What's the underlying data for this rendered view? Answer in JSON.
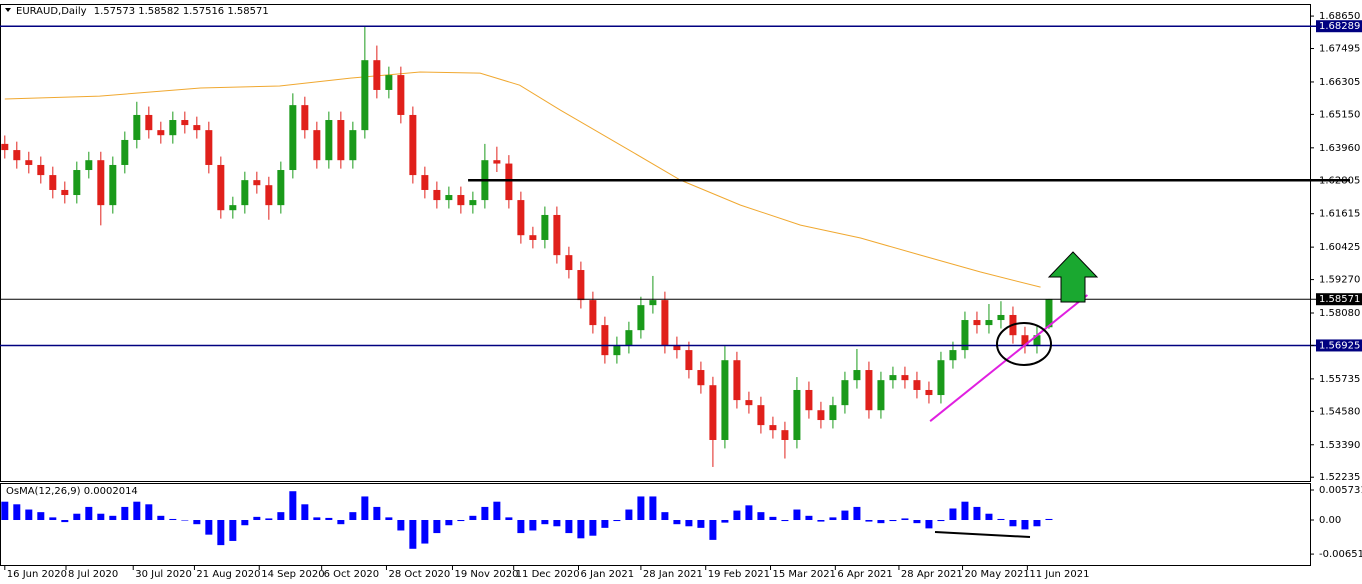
{
  "chart_data": {
    "type": "candlestick",
    "symbol": "EURAUD,Daily",
    "up_color": "#1a9a1a",
    "down_color": "#e0201b",
    "open": [
      1.641,
      1.6388,
      1.6352,
      1.6335,
      1.6299,
      1.6246,
      1.6228,
      1.6317,
      1.6352,
      1.6192,
      1.6335,
      1.6424,
      1.6513,
      1.6459,
      1.6441,
      1.6495,
      1.6477,
      1.6459,
      1.6335,
      1.6174,
      1.6192,
      1.6281,
      1.6263,
      1.6192,
      1.6317,
      1.6548,
      1.6459,
      1.6352,
      1.6495,
      1.6352,
      1.6459,
      1.6708,
      1.6602,
      1.6655,
      1.6513,
      1.6299,
      1.6246,
      1.621,
      1.6228,
      1.6192,
      1.621,
      1.6352,
      1.634,
      1.621,
      1.6085,
      1.6068,
      1.6157,
      1.6014,
      1.5961,
      1.5854,
      1.5765,
      1.5658,
      1.5694,
      1.5747,
      1.5836,
      1.5854,
      1.5694,
      1.5676,
      1.5605,
      1.5551,
      1.5356,
      1.564,
      1.5498,
      1.548,
      1.5409,
      1.5391,
      1.5356,
      1.5534,
      1.5462,
      1.5427,
      1.548,
      1.5569,
      1.5605,
      1.5462,
      1.5569,
      1.5587,
      1.5569,
      1.5534,
      1.5516,
      1.564,
      1.5676,
      1.5783,
      1.5765,
      1.5783,
      1.5801,
      1.5729,
      1.5694,
      1.57573
    ],
    "high": [
      1.644,
      1.6418,
      1.6382,
      1.6365,
      1.6329,
      1.6276,
      1.6347,
      1.6382,
      1.6382,
      1.6365,
      1.6454,
      1.656,
      1.6543,
      1.6489,
      1.6525,
      1.6525,
      1.6507,
      1.6489,
      1.6365,
      1.6222,
      1.6311,
      1.6311,
      1.6293,
      1.6347,
      1.659,
      1.6578,
      1.6489,
      1.6525,
      1.6525,
      1.6489,
      1.6829,
      1.676,
      1.6685,
      1.6685,
      1.6543,
      1.6329,
      1.6276,
      1.6258,
      1.6258,
      1.624,
      1.641,
      1.64,
      1.637,
      1.624,
      1.6115,
      1.6187,
      1.6187,
      1.6044,
      1.5991,
      1.5884,
      1.5795,
      1.5724,
      1.5777,
      1.5866,
      1.594,
      1.5884,
      1.5724,
      1.5706,
      1.5635,
      1.5581,
      1.569,
      1.567,
      1.5528,
      1.551,
      1.5439,
      1.5421,
      1.558,
      1.5564,
      1.5492,
      1.551,
      1.5599,
      1.568,
      1.5635,
      1.5599,
      1.5617,
      1.5617,
      1.5599,
      1.5564,
      1.567,
      1.5706,
      1.5813,
      1.5813,
      1.584,
      1.585,
      1.5831,
      1.5759,
      1.5759,
      1.58582
    ],
    "low": [
      1.6358,
      1.6322,
      1.6305,
      1.6269,
      1.6216,
      1.6198,
      1.6198,
      1.6287,
      1.612,
      1.6162,
      1.6305,
      1.6394,
      1.6429,
      1.6411,
      1.6411,
      1.6447,
      1.6429,
      1.6305,
      1.6144,
      1.6144,
      1.6162,
      1.6233,
      1.614,
      1.6162,
      1.6287,
      1.6429,
      1.6322,
      1.6322,
      1.6322,
      1.6322,
      1.6429,
      1.6572,
      1.6572,
      1.6483,
      1.6269,
      1.6216,
      1.618,
      1.618,
      1.6162,
      1.6162,
      1.618,
      1.631,
      1.618,
      1.6055,
      1.6038,
      1.6038,
      1.5984,
      1.5931,
      1.5824,
      1.5735,
      1.5628,
      1.5628,
      1.5664,
      1.5717,
      1.5806,
      1.5664,
      1.5646,
      1.5575,
      1.5521,
      1.526,
      1.5326,
      1.5468,
      1.545,
      1.5379,
      1.5361,
      1.529,
      1.5326,
      1.5432,
      1.5397,
      1.5397,
      1.545,
      1.5539,
      1.5432,
      1.5432,
      1.5539,
      1.5539,
      1.5504,
      1.5486,
      1.5486,
      1.561,
      1.5646,
      1.5735,
      1.5735,
      1.5753,
      1.5699,
      1.5664,
      1.5664,
      1.57516
    ],
    "close": [
      1.6388,
      1.6352,
      1.6335,
      1.6299,
      1.6246,
      1.6228,
      1.6317,
      1.6352,
      1.6192,
      1.6335,
      1.6424,
      1.6513,
      1.6459,
      1.6441,
      1.6495,
      1.6477,
      1.6459,
      1.6335,
      1.6174,
      1.6192,
      1.6281,
      1.6263,
      1.6192,
      1.6317,
      1.6548,
      1.6459,
      1.6352,
      1.6495,
      1.6352,
      1.6459,
      1.6708,
      1.6602,
      1.6655,
      1.6513,
      1.6299,
      1.6246,
      1.621,
      1.6228,
      1.6192,
      1.621,
      1.6352,
      1.634,
      1.621,
      1.6085,
      1.6068,
      1.6157,
      1.6014,
      1.5961,
      1.5854,
      1.5765,
      1.5658,
      1.5694,
      1.5747,
      1.5836,
      1.5854,
      1.5694,
      1.5676,
      1.5605,
      1.5551,
      1.5356,
      1.564,
      1.5498,
      1.548,
      1.5409,
      1.5391,
      1.5356,
      1.5534,
      1.5462,
      1.5427,
      1.548,
      1.5569,
      1.5605,
      1.5462,
      1.5569,
      1.5587,
      1.5569,
      1.5534,
      1.5516,
      1.564,
      1.5676,
      1.5783,
      1.5765,
      1.5783,
      1.5801,
      1.5729,
      1.5694,
      1.5729,
      1.58571
    ],
    "xlim": [
      -0.4,
      108.75
    ],
    "ylim": [
      1.521,
      1.6908
    ],
    "yticks": [
      {
        "value": 1.6865,
        "label": "1.68650"
      },
      1.67495,
      1.66305,
      {
        "value": 1.6515,
        "label": "1.65150"
      },
      {
        "value": 1.6396,
        "label": "1.63960"
      },
      1.62805,
      1.61615,
      1.60425,
      {
        "value": 1.5927,
        "label": "1.59270"
      },
      {
        "value": 1.5808,
        "label": "1.58080"
      },
      1.56925,
      1.55735,
      {
        "value": 1.5458,
        "label": "1.54580"
      },
      {
        "value": 1.5339,
        "label": "1.53390"
      },
      1.52235
    ],
    "xticks": [
      {
        "value": 0,
        "label": "16 Jun 2020"
      },
      {
        "value": 5.1,
        "label": "8 Jul 2020"
      },
      {
        "value": 10.7,
        "label": "30 Jul 2020"
      },
      {
        "value": 15.8,
        "label": "21 Aug 2020"
      },
      {
        "value": 21.2,
        "label": "14 Sep 2020"
      },
      {
        "value": 26.4,
        "label": "6 Oct 2020"
      },
      {
        "value": 31.8,
        "label": "28 Oct 2020"
      },
      {
        "value": 37.3,
        "label": "19 Nov 2020"
      },
      {
        "value": 42.4,
        "label": "11 Dec 2020"
      },
      {
        "value": 47.8,
        "label": "6 Jan 2021"
      },
      {
        "value": 53,
        "label": "28 Jan 2021"
      },
      {
        "value": 58.4,
        "label": "19 Feb 2021"
      },
      {
        "value": 63.8,
        "label": "15 Mar 2021"
      },
      {
        "value": 69.2,
        "label": "6 Apr 2021"
      },
      {
        "value": 74.5,
        "label": "28 Apr 2021"
      },
      {
        "value": 79.8,
        "label": "20 May 2021"
      },
      {
        "value": 85.2,
        "label": "11 Jun 2021"
      }
    ],
    "ma": {
      "color": "#f0a830",
      "x": [
        0,
        7.9,
        16.3,
        22.9,
        28.8,
        34.6,
        39.6,
        42.9,
        46.3,
        51.3,
        56.3,
        61.3,
        66.3,
        71.3,
        76.3,
        81.3,
        86.3
      ],
      "values": [
        1.657,
        1.658,
        1.6609,
        1.6616,
        1.6644,
        1.6666,
        1.6662,
        1.6619,
        1.653,
        1.6406,
        1.6281,
        1.6192,
        1.6121,
        1.6075,
        1.6014,
        1.5954,
        1.59
      ]
    },
    "levels": [
      {
        "value": 1.68289,
        "color": "#000080",
        "boxed": true
      },
      {
        "value": 1.62805,
        "color": "#000000",
        "from": 38.6
      },
      {
        "value": 1.58571,
        "color": "#000000",
        "boxed": true
      },
      {
        "value": 1.56925,
        "color": "#000080",
        "boxed": true
      }
    ],
    "trendline": {
      "color": "#e020e0",
      "x": [
        77.1,
        90.2
      ],
      "values": [
        1.5423,
        1.5872
      ]
    },
    "indicator": {
      "type": "bar",
      "name": "OsMA(12,26,9)",
      "color": "#0000ff",
      "ylim": [
        -0.00879,
        0.00688
      ],
      "yticks": [
        0.0057312,
        {
          "value": 0,
          "label": "0.00"
        },
        -0.006514
      ],
      "values": [
        0.0035,
        0.003,
        0.002,
        0.0015,
        0.0005,
        -0.0004,
        0.0012,
        0.0025,
        0.0012,
        0.0008,
        0.0025,
        0.0035,
        0.003,
        0.0008,
        0.0002,
        -0.0001,
        -0.0008,
        -0.0028,
        -0.0048,
        -0.004,
        -0.001,
        0.0006,
        0.0003,
        0.0015,
        0.0055,
        0.003,
        0.0005,
        0.0004,
        -0.0008,
        0.0015,
        0.0045,
        0.0025,
        0.0005,
        -0.002,
        -0.0055,
        -0.0045,
        -0.0025,
        -0.001,
        -0.0002,
        0.0008,
        0.0025,
        0.0035,
        0.0005,
        -0.0025,
        -0.002,
        -0.0008,
        -0.0012,
        -0.0025,
        -0.0035,
        -0.003,
        -0.0015,
        -0.0002,
        0.002,
        0.0045,
        0.0045,
        0.0015,
        -0.0008,
        -0.0012,
        -0.0015,
        -0.0038,
        -0.0005,
        0.0018,
        0.0028,
        0.0015,
        0.0006,
        -0.0002,
        0.002,
        0.0008,
        -0.0003,
        0.0005,
        0.0018,
        0.0025,
        -0.0003,
        -0.0006,
        -0.0002,
        0.0003,
        -0.0006,
        -0.0016,
        -0.0002,
        0.0022,
        0.0035,
        0.0025,
        0.0012,
        0.0002,
        -0.0012,
        -0.0018,
        -0.0012,
        0.0002014
      ]
    }
  }
}
